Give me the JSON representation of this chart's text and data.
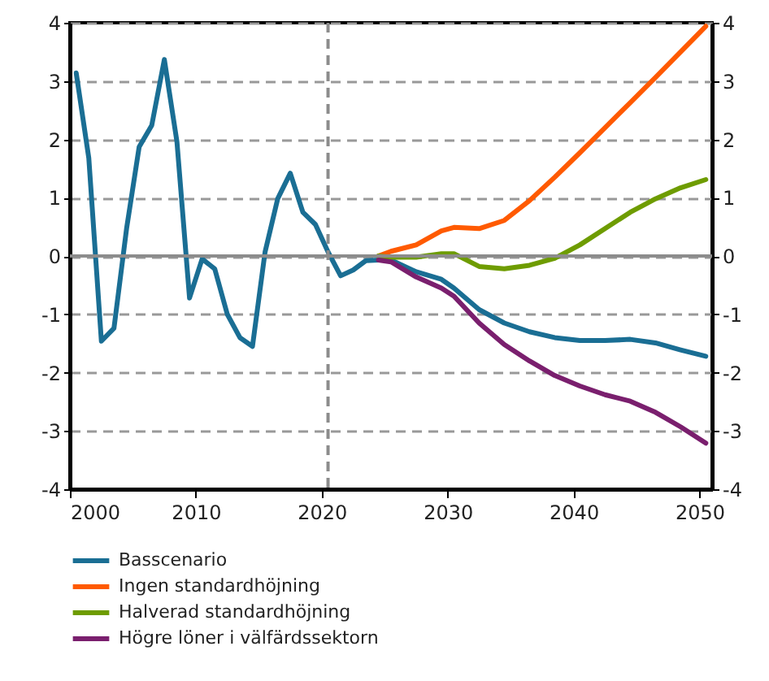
{
  "chart_data": {
    "type": "line",
    "xlim": [
      2000,
      2051
    ],
    "xticks": [
      2000,
      2010,
      2020,
      2030,
      2040,
      2050
    ],
    "ylim": [
      -4,
      4
    ],
    "yticks": [
      -4,
      -3,
      -2,
      -1,
      0,
      1,
      2,
      3,
      4
    ],
    "y2lim": [
      -4,
      4
    ],
    "y2ticks": [
      -4,
      -3,
      -2,
      -1,
      0,
      1,
      2,
      3,
      4
    ],
    "grid": "y",
    "legend": "bottom",
    "line_style": "solid",
    "marker": "none",
    "ref_lines": [
      {
        "axis": "y",
        "value": 0,
        "label": null,
        "color": "#8c8c8c",
        "line_style": "solid"
      },
      {
        "axis": "x",
        "value": 2020.5,
        "label": null,
        "color": "#8c8c8c",
        "line_style": "dashed"
      }
    ],
    "series": [
      {
        "name": "Basscenario",
        "color": "#1a6e94",
        "x": [
          2000.5,
          2001.5,
          2002.5,
          2003.5,
          2004.5,
          2005.5,
          2006.5,
          2007.5,
          2008.5,
          2009.5,
          2010.5,
          2011.5,
          2012.5,
          2013.5,
          2014.5,
          2015.5,
          2016.5,
          2017.5,
          2018.5,
          2019.5,
          2020.5,
          2021.5,
          2022.5,
          2023.5,
          2024.5,
          2025.5,
          2027.5,
          2029.5,
          2030.5,
          2032.5,
          2034.5,
          2036.5,
          2038.5,
          2040.5,
          2042.5,
          2044.5,
          2046.5,
          2048.5,
          2050.5
        ],
        "values": [
          3.14,
          1.68,
          -1.46,
          -1.24,
          0.47,
          1.87,
          2.24,
          3.37,
          1.96,
          -0.72,
          -0.05,
          -0.22,
          -1.0,
          -1.4,
          -1.55,
          0.07,
          0.98,
          1.42,
          0.75,
          0.54,
          0.07,
          -0.34,
          -0.24,
          -0.08,
          -0.07,
          -0.07,
          -0.27,
          -0.4,
          -0.55,
          -0.92,
          -1.15,
          -1.3,
          -1.4,
          -1.45,
          -1.45,
          -1.43,
          -1.49,
          -1.61,
          -1.72
        ]
      },
      {
        "name": "Ingen standardhöjning",
        "color": "#ff5a00",
        "x": [
          2024.5,
          2025.5,
          2027.5,
          2029.5,
          2030.5,
          2032.5,
          2034.5,
          2036.5,
          2038.5,
          2040.5,
          2042.5,
          2044.5,
          2046.5,
          2048.5,
          2050.5
        ],
        "values": [
          0,
          0.08,
          0.19,
          0.43,
          0.49,
          0.47,
          0.61,
          0.95,
          1.35,
          1.77,
          2.2,
          2.63,
          3.06,
          3.5,
          3.94
        ]
      },
      {
        "name": "Halverad standardhöjning",
        "color": "#6e9c00",
        "x": [
          2024.5,
          2025.5,
          2027.5,
          2029.5,
          2030.5,
          2032.5,
          2034.5,
          2036.5,
          2038.5,
          2040.5,
          2042.5,
          2044.5,
          2046.5,
          2048.5,
          2050.5
        ],
        "values": [
          0,
          -0.02,
          -0.02,
          0.04,
          0.04,
          -0.18,
          -0.22,
          -0.16,
          -0.04,
          0.19,
          0.47,
          0.75,
          0.98,
          1.17,
          1.31
        ]
      },
      {
        "name": "Högre löner i välfärdssektorn",
        "color": "#7a1f6e",
        "x": [
          2024.5,
          2025.5,
          2027.5,
          2029.5,
          2030.5,
          2032.5,
          2034.5,
          2036.5,
          2038.5,
          2040.5,
          2042.5,
          2044.5,
          2046.5,
          2048.5,
          2050.5
        ],
        "values": [
          -0.07,
          -0.1,
          -0.36,
          -0.55,
          -0.69,
          -1.15,
          -1.52,
          -1.8,
          -2.05,
          -2.23,
          -2.38,
          -2.49,
          -2.68,
          -2.93,
          -3.21
        ]
      }
    ]
  }
}
